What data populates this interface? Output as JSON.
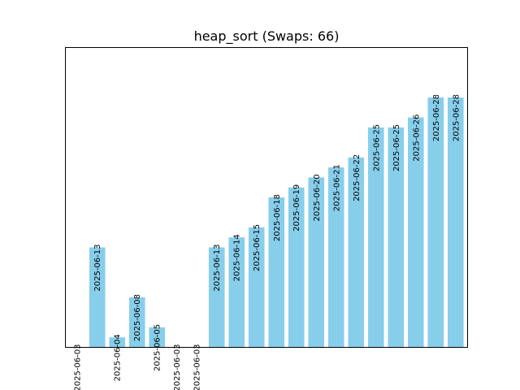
{
  "chart_data": {
    "type": "bar",
    "title": "heap_sort (Swaps: 66)",
    "xlabel": "",
    "ylabel": "",
    "ylim": [
      0,
      30
    ],
    "grid": false,
    "bar_color": "#87ceeb",
    "frame_color": "#000000",
    "categories": [
      "2025-06-03",
      "2025-06-13",
      "2025-06-04",
      "2025-06-08",
      "2025-06-05",
      "2025-06-03",
      "2025-06-03",
      "2025-06-13",
      "2025-06-14",
      "2025-06-15",
      "2025-06-18",
      "2025-06-19",
      "2025-06-20",
      "2025-06-21",
      "2025-06-22",
      "2025-06-25",
      "2025-06-25",
      "2025-06-26",
      "2025-06-28",
      "2025-06-28"
    ],
    "values": [
      0,
      10,
      1,
      5,
      2,
      0,
      0,
      10,
      11,
      12,
      15,
      16,
      17,
      18,
      19,
      22,
      22,
      23,
      25,
      25
    ]
  }
}
